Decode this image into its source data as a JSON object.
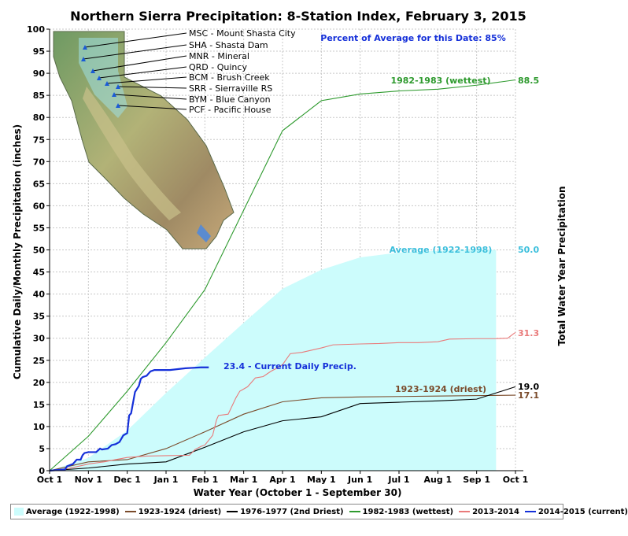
{
  "chart_data": {
    "type": "line",
    "title": "Northern Sierra Precipitation: 8-Station Index, February 3, 2015",
    "xlabel": "Water Year (October 1 - September 30)",
    "ylabel": "Cumulative Daily/Monthly Precipitation (inches)",
    "ylabel_right": "Total Water Year Precipitation",
    "percent_note": "Percent of Average for this Date: 85%",
    "ylim": [
      0,
      100
    ],
    "yticks": [
      0,
      5,
      10,
      15,
      20,
      25,
      30,
      35,
      40,
      45,
      50,
      55,
      60,
      65,
      70,
      75,
      80,
      85,
      90,
      95,
      100
    ],
    "xticks": [
      "Oct 1",
      "Nov 1",
      "Dec 1",
      "Jan 1",
      "Feb 1",
      "Mar 1",
      "Apr 1",
      "May 1",
      "Jun 1",
      "Jul 1",
      "Aug 1",
      "Sep 1",
      "Oct 1"
    ],
    "grid": true,
    "legend_position": "bottom",
    "stations": [
      "MSC - Mount Shasta City",
      "SHA - Shasta Dam",
      "MNR - Mineral",
      "QRD - Quincy",
      "BCM - Brush Creek",
      "SRR - Sierraville RS",
      "BYM - Blue Canyon",
      "PCF - Pacific House"
    ],
    "series": [
      {
        "name": "Average (1922-1998)",
        "style": "area",
        "color": "#ccfcfc",
        "label_color": "#3bbfdc",
        "end_label": "50.0",
        "label": "Average (1922-1998)",
        "x": [
          0,
          1,
          2,
          3,
          4,
          5,
          6,
          7,
          8,
          9,
          10,
          11,
          11.5
        ],
        "y": [
          0,
          2.9,
          9.1,
          17.6,
          25.6,
          33.5,
          41.2,
          45.5,
          48.3,
          49.4,
          49.8,
          50.0,
          50.0
        ]
      },
      {
        "name": "1923-1924 (driest)",
        "color": "#7a4a2a",
        "end_label": "17.1",
        "label": "1923-1924 (driest)",
        "x": [
          0,
          1,
          2,
          3,
          4,
          5,
          6,
          7,
          8,
          9,
          10,
          11,
          12
        ],
        "y": [
          0,
          2.0,
          2.5,
          5.0,
          8.8,
          12.8,
          15.6,
          16.5,
          16.7,
          16.8,
          16.9,
          17.0,
          17.1
        ]
      },
      {
        "name": "1976-1977 (2nd Driest)",
        "color": "#000000",
        "end_label": "19.0",
        "x": [
          0,
          1,
          2,
          3,
          4,
          5,
          6,
          7,
          8,
          9,
          10,
          11,
          12
        ],
        "y": [
          0,
          0.6,
          1.5,
          2.0,
          5.3,
          8.8,
          11.3,
          12.2,
          15.2,
          15.5,
          15.8,
          16.2,
          19.0
        ]
      },
      {
        "name": "1982-1983 (wettest)",
        "color": "#2e9a2e",
        "end_label": "88.5",
        "label": "1982-1983 (wettest)",
        "x": [
          0,
          1,
          2,
          3,
          4,
          5,
          6,
          7,
          8,
          9,
          10,
          11,
          12
        ],
        "y": [
          0,
          7.8,
          18.0,
          29.0,
          41.0,
          59.0,
          77.0,
          83.8,
          85.3,
          86.0,
          86.4,
          87.3,
          88.5
        ]
      },
      {
        "name": "2013-2014",
        "color": "#e97a7a",
        "end_label": "31.3",
        "x": [
          0,
          0.5,
          1,
          1.4,
          1.7,
          2,
          2.5,
          3,
          3.6,
          3.75,
          3.9,
          4,
          4.2,
          4.3,
          4.35,
          4.6,
          4.8,
          4.9,
          5.0,
          5.1,
          5.3,
          5.5,
          5.7,
          5.85,
          6,
          6.2,
          6.5,
          7,
          7.3,
          8,
          8.5,
          9,
          9.5,
          10,
          10.3,
          11,
          11.5,
          11.8,
          11.95,
          12
        ],
        "y": [
          0,
          0.5,
          1.5,
          2.0,
          2.5,
          3.0,
          3.3,
          3.4,
          3.5,
          4.8,
          5.5,
          5.8,
          8.0,
          11.5,
          12.5,
          12.8,
          16.5,
          18.0,
          18.5,
          19.0,
          21.0,
          21.3,
          22.5,
          23.2,
          24.0,
          26.5,
          26.8,
          27.8,
          28.5,
          28.7,
          28.8,
          29.0,
          29.0,
          29.2,
          29.8,
          29.9,
          29.9,
          30.0,
          31.0,
          31.3
        ]
      },
      {
        "name": "2014-2015 (current)",
        "color": "#1530d9",
        "end_label": "23.4 -  Current Daily Precip.",
        "x": [
          0,
          0.4,
          0.45,
          0.6,
          0.7,
          0.8,
          0.85,
          0.9,
          1.0,
          1.1,
          1.2,
          1.3,
          1.35,
          1.5,
          1.6,
          1.7,
          1.8,
          1.9,
          2.0,
          2.05,
          2.1,
          2.2,
          2.25,
          2.3,
          2.35,
          2.4,
          2.5,
          2.55,
          2.6,
          2.7,
          2.8,
          2.9,
          3.0,
          3.1,
          3.3,
          3.5,
          3.7,
          3.9,
          4.0,
          4.1
        ],
        "y": [
          0,
          0.3,
          1.0,
          1.5,
          2.5,
          2.5,
          3.5,
          4.0,
          4.2,
          4.2,
          4.2,
          5.0,
          4.8,
          5.0,
          5.8,
          6.0,
          6.5,
          8.0,
          8.5,
          12.5,
          13.0,
          17.8,
          18.5,
          19.2,
          20.8,
          21.2,
          21.5,
          22.0,
          22.5,
          22.8,
          22.8,
          22.8,
          22.8,
          22.8,
          23.0,
          23.2,
          23.3,
          23.4,
          23.4,
          23.4
        ]
      }
    ]
  }
}
